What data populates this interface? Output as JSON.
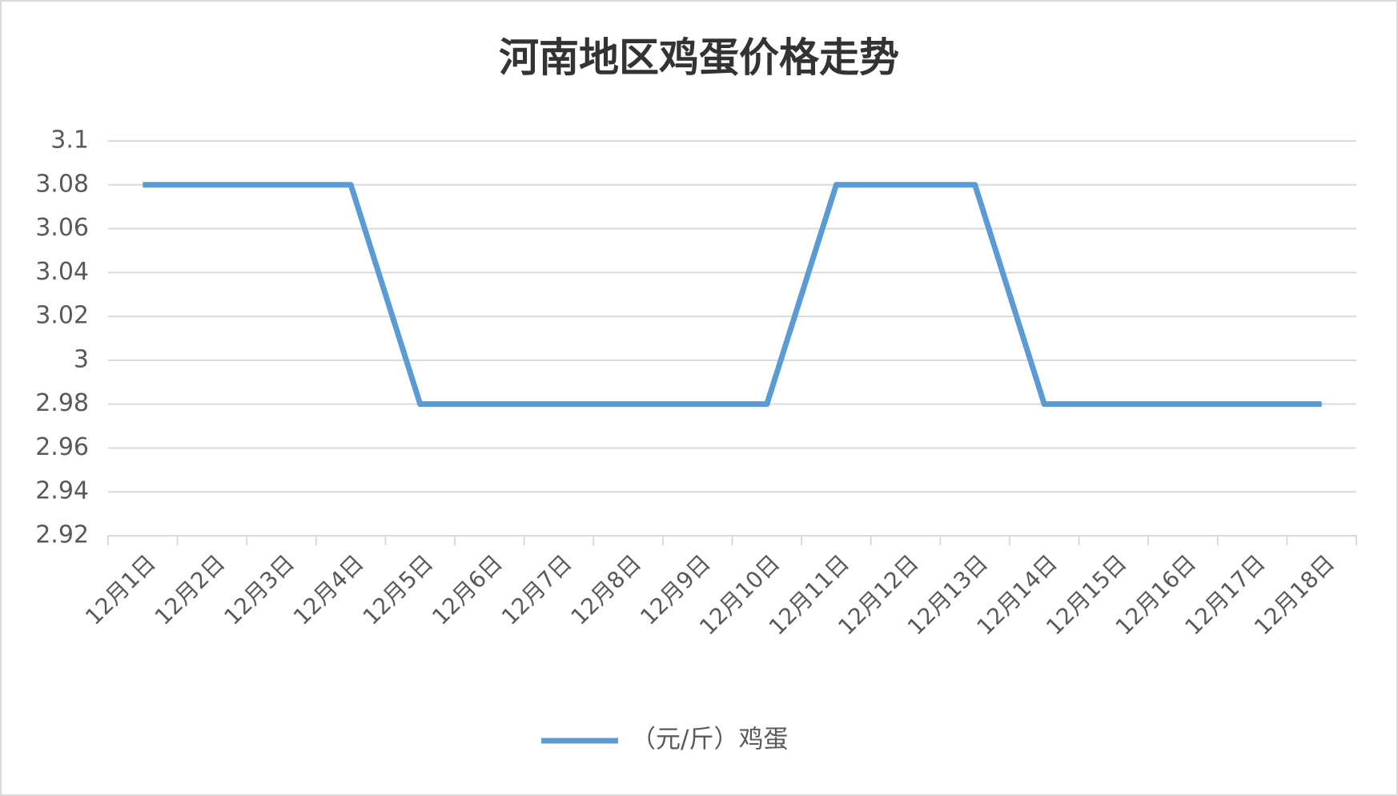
{
  "chart_data": {
    "type": "line",
    "title": "河南地区鸡蛋价格走势",
    "categories": [
      "12月1日",
      "12月2日",
      "12月3日",
      "12月4日",
      "12月5日",
      "12月6日",
      "12月7日",
      "12月8日",
      "12月9日",
      "12月10日",
      "12月11日",
      "12月12日",
      "12月13日",
      "12月14日",
      "12月15日",
      "12月16日",
      "12月17日",
      "12月18日"
    ],
    "series": [
      {
        "name": "（元/斤）鸡蛋",
        "color": "#5b9bd5",
        "values": [
          3.08,
          3.08,
          3.08,
          3.08,
          2.98,
          2.98,
          2.98,
          2.98,
          2.98,
          2.98,
          3.08,
          3.08,
          3.08,
          2.98,
          2.98,
          2.98,
          2.98,
          2.98
        ]
      }
    ],
    "ylim": [
      2.92,
      3.1
    ],
    "yticks": [
      2.92,
      2.94,
      2.96,
      2.98,
      3,
      3.02,
      3.04,
      3.06,
      3.08,
      3.1
    ],
    "grid": true,
    "legend": "bottom"
  }
}
